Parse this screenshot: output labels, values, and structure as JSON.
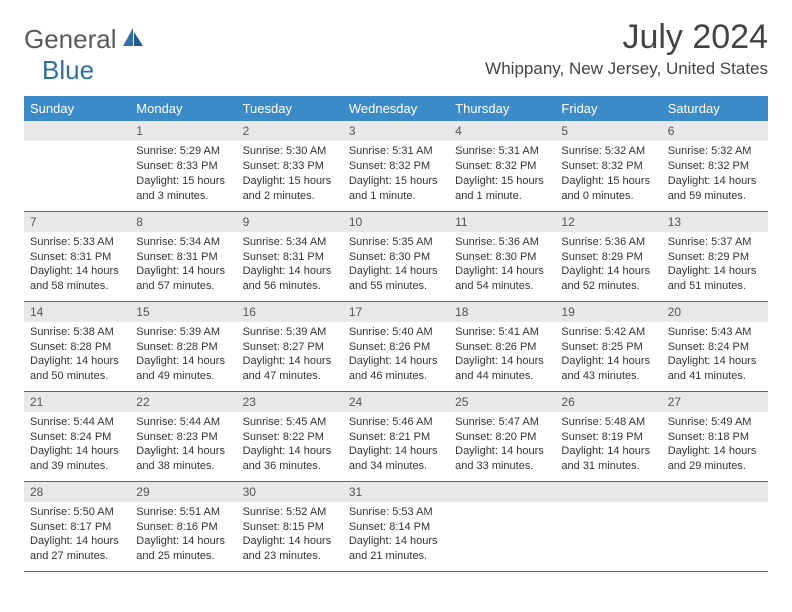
{
  "logo": {
    "text_general": "General",
    "text_blue": "Blue",
    "icon_color": "#2f6fa8",
    "gray_color": "#5a5a5a"
  },
  "title": "July 2024",
  "location": "Whippany, New Jersey, United States",
  "header_bg": "#3b8bc9",
  "daynum_bg": "#e8e8e8",
  "border_color": "#3b6fa0",
  "day_headers": [
    "Sunday",
    "Monday",
    "Tuesday",
    "Wednesday",
    "Thursday",
    "Friday",
    "Saturday"
  ],
  "weeks": [
    [
      null,
      {
        "n": "1",
        "sr": "Sunrise: 5:29 AM",
        "ss": "Sunset: 8:33 PM",
        "dl": "Daylight: 15 hours and 3 minutes."
      },
      {
        "n": "2",
        "sr": "Sunrise: 5:30 AM",
        "ss": "Sunset: 8:33 PM",
        "dl": "Daylight: 15 hours and 2 minutes."
      },
      {
        "n": "3",
        "sr": "Sunrise: 5:31 AM",
        "ss": "Sunset: 8:32 PM",
        "dl": "Daylight: 15 hours and 1 minute."
      },
      {
        "n": "4",
        "sr": "Sunrise: 5:31 AM",
        "ss": "Sunset: 8:32 PM",
        "dl": "Daylight: 15 hours and 1 minute."
      },
      {
        "n": "5",
        "sr": "Sunrise: 5:32 AM",
        "ss": "Sunset: 8:32 PM",
        "dl": "Daylight: 15 hours and 0 minutes."
      },
      {
        "n": "6",
        "sr": "Sunrise: 5:32 AM",
        "ss": "Sunset: 8:32 PM",
        "dl": "Daylight: 14 hours and 59 minutes."
      }
    ],
    [
      {
        "n": "7",
        "sr": "Sunrise: 5:33 AM",
        "ss": "Sunset: 8:31 PM",
        "dl": "Daylight: 14 hours and 58 minutes."
      },
      {
        "n": "8",
        "sr": "Sunrise: 5:34 AM",
        "ss": "Sunset: 8:31 PM",
        "dl": "Daylight: 14 hours and 57 minutes."
      },
      {
        "n": "9",
        "sr": "Sunrise: 5:34 AM",
        "ss": "Sunset: 8:31 PM",
        "dl": "Daylight: 14 hours and 56 minutes."
      },
      {
        "n": "10",
        "sr": "Sunrise: 5:35 AM",
        "ss": "Sunset: 8:30 PM",
        "dl": "Daylight: 14 hours and 55 minutes."
      },
      {
        "n": "11",
        "sr": "Sunrise: 5:36 AM",
        "ss": "Sunset: 8:30 PM",
        "dl": "Daylight: 14 hours and 54 minutes."
      },
      {
        "n": "12",
        "sr": "Sunrise: 5:36 AM",
        "ss": "Sunset: 8:29 PM",
        "dl": "Daylight: 14 hours and 52 minutes."
      },
      {
        "n": "13",
        "sr": "Sunrise: 5:37 AM",
        "ss": "Sunset: 8:29 PM",
        "dl": "Daylight: 14 hours and 51 minutes."
      }
    ],
    [
      {
        "n": "14",
        "sr": "Sunrise: 5:38 AM",
        "ss": "Sunset: 8:28 PM",
        "dl": "Daylight: 14 hours and 50 minutes."
      },
      {
        "n": "15",
        "sr": "Sunrise: 5:39 AM",
        "ss": "Sunset: 8:28 PM",
        "dl": "Daylight: 14 hours and 49 minutes."
      },
      {
        "n": "16",
        "sr": "Sunrise: 5:39 AM",
        "ss": "Sunset: 8:27 PM",
        "dl": "Daylight: 14 hours and 47 minutes."
      },
      {
        "n": "17",
        "sr": "Sunrise: 5:40 AM",
        "ss": "Sunset: 8:26 PM",
        "dl": "Daylight: 14 hours and 46 minutes."
      },
      {
        "n": "18",
        "sr": "Sunrise: 5:41 AM",
        "ss": "Sunset: 8:26 PM",
        "dl": "Daylight: 14 hours and 44 minutes."
      },
      {
        "n": "19",
        "sr": "Sunrise: 5:42 AM",
        "ss": "Sunset: 8:25 PM",
        "dl": "Daylight: 14 hours and 43 minutes."
      },
      {
        "n": "20",
        "sr": "Sunrise: 5:43 AM",
        "ss": "Sunset: 8:24 PM",
        "dl": "Daylight: 14 hours and 41 minutes."
      }
    ],
    [
      {
        "n": "21",
        "sr": "Sunrise: 5:44 AM",
        "ss": "Sunset: 8:24 PM",
        "dl": "Daylight: 14 hours and 39 minutes."
      },
      {
        "n": "22",
        "sr": "Sunrise: 5:44 AM",
        "ss": "Sunset: 8:23 PM",
        "dl": "Daylight: 14 hours and 38 minutes."
      },
      {
        "n": "23",
        "sr": "Sunrise: 5:45 AM",
        "ss": "Sunset: 8:22 PM",
        "dl": "Daylight: 14 hours and 36 minutes."
      },
      {
        "n": "24",
        "sr": "Sunrise: 5:46 AM",
        "ss": "Sunset: 8:21 PM",
        "dl": "Daylight: 14 hours and 34 minutes."
      },
      {
        "n": "25",
        "sr": "Sunrise: 5:47 AM",
        "ss": "Sunset: 8:20 PM",
        "dl": "Daylight: 14 hours and 33 minutes."
      },
      {
        "n": "26",
        "sr": "Sunrise: 5:48 AM",
        "ss": "Sunset: 8:19 PM",
        "dl": "Daylight: 14 hours and 31 minutes."
      },
      {
        "n": "27",
        "sr": "Sunrise: 5:49 AM",
        "ss": "Sunset: 8:18 PM",
        "dl": "Daylight: 14 hours and 29 minutes."
      }
    ],
    [
      {
        "n": "28",
        "sr": "Sunrise: 5:50 AM",
        "ss": "Sunset: 8:17 PM",
        "dl": "Daylight: 14 hours and 27 minutes."
      },
      {
        "n": "29",
        "sr": "Sunrise: 5:51 AM",
        "ss": "Sunset: 8:16 PM",
        "dl": "Daylight: 14 hours and 25 minutes."
      },
      {
        "n": "30",
        "sr": "Sunrise: 5:52 AM",
        "ss": "Sunset: 8:15 PM",
        "dl": "Daylight: 14 hours and 23 minutes."
      },
      {
        "n": "31",
        "sr": "Sunrise: 5:53 AM",
        "ss": "Sunset: 8:14 PM",
        "dl": "Daylight: 14 hours and 21 minutes."
      },
      null,
      null,
      null
    ]
  ]
}
